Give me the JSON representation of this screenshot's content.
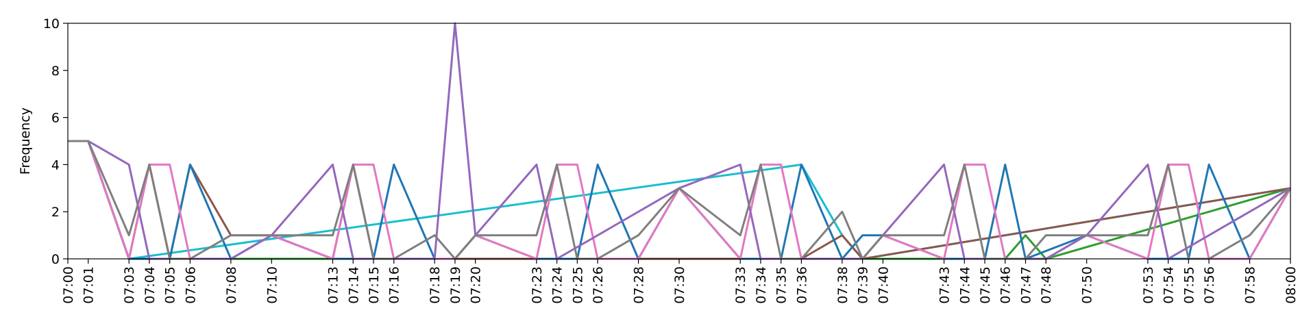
{
  "chart_data": {
    "type": "line",
    "title": "",
    "xlabel": "",
    "ylabel": "Frequency",
    "ylim": [
      0,
      10
    ],
    "y_ticks": [
      "0",
      "2",
      "4",
      "6",
      "8",
      "10"
    ],
    "xlim": [
      "07:00",
      "08:00"
    ],
    "x_ticks": [
      "07:00",
      "07:01",
      "07:03",
      "07:04",
      "07:05",
      "07:06",
      "07:08",
      "07:10",
      "07:13",
      "07:14",
      "07:15",
      "07:16",
      "07:18",
      "07:19",
      "07:20",
      "07:23",
      "07:24",
      "07:25",
      "07:26",
      "07:28",
      "07:30",
      "07:33",
      "07:34",
      "07:35",
      "07:36",
      "07:38",
      "07:39",
      "07:40",
      "07:43",
      "07:44",
      "07:45",
      "07:46",
      "07:47",
      "07:48",
      "07:50",
      "07:53",
      "07:54",
      "07:55",
      "07:56",
      "07:58",
      "08:00"
    ],
    "grid": false,
    "legend": "none",
    "series": [
      {
        "color": "#2ca02c",
        "x": [
          "07:00",
          "07:01",
          "07:03",
          "07:46",
          "07:47",
          "07:48",
          "08:00"
        ],
        "y": [
          5,
          5,
          0,
          0,
          1,
          0,
          3
        ]
      },
      {
        "color": "#17becf",
        "x": [
          "07:00",
          "07:01",
          "07:03",
          "07:36",
          "07:38",
          "07:39",
          "08:00"
        ],
        "y": [
          5,
          5,
          0,
          4,
          1,
          0,
          3
        ]
      },
      {
        "color": "#8c564b",
        "x": [
          "07:00",
          "07:01",
          "07:03",
          "07:04",
          "07:05",
          "07:06",
          "07:08",
          "07:10",
          "07:13",
          "07:14",
          "07:15",
          "07:36",
          "07:38",
          "07:39",
          "08:00"
        ],
        "y": [
          5,
          5,
          0,
          4,
          0,
          4,
          1,
          1,
          0,
          4,
          0,
          0,
          1,
          0,
          3
        ]
      },
      {
        "color": "#1f77b4",
        "x": [
          "07:00",
          "07:01",
          "07:03",
          "07:05",
          "07:06",
          "07:08",
          "07:10",
          "07:13",
          "07:15",
          "07:16",
          "07:18",
          "07:19",
          "07:20",
          "07:23",
          "07:25",
          "07:26",
          "07:28",
          "07:30",
          "07:33",
          "07:35",
          "07:36",
          "07:38",
          "07:39",
          "07:40",
          "07:43",
          "07:45",
          "07:46",
          "07:47",
          "07:50",
          "07:53",
          "07:55",
          "07:56",
          "07:58",
          "08:00"
        ],
        "y": [
          5,
          5,
          0,
          0,
          4,
          0,
          1,
          0,
          0,
          4,
          0,
          0,
          1,
          0,
          0,
          4,
          0,
          3,
          0,
          0,
          4,
          0,
          1,
          1,
          0,
          0,
          4,
          0,
          1,
          0,
          0,
          4,
          0,
          3
        ]
      },
      {
        "color": "#e377c2",
        "x": [
          "07:00",
          "07:01",
          "07:03",
          "07:04",
          "07:05",
          "07:06",
          "07:08",
          "07:10",
          "07:13",
          "07:14",
          "07:15",
          "07:16",
          "07:18",
          "07:19",
          "07:20",
          "07:23",
          "07:24",
          "07:25",
          "07:26",
          "07:28",
          "07:30",
          "07:33",
          "07:34",
          "07:35",
          "07:36",
          "07:38",
          "07:39",
          "07:40",
          "07:43",
          "07:44",
          "07:45",
          "07:46",
          "07:48",
          "07:50",
          "07:53",
          "07:54",
          "07:55",
          "07:56",
          "07:58",
          "08:00"
        ],
        "y": [
          5,
          5,
          0,
          4,
          4,
          0,
          0,
          1,
          0,
          4,
          4,
          0,
          0,
          0,
          1,
          0,
          4,
          4,
          0,
          0,
          3,
          0,
          4,
          4,
          0,
          0,
          0,
          1,
          0,
          4,
          4,
          0,
          0,
          1,
          0,
          4,
          4,
          0,
          0,
          3
        ]
      },
      {
        "color": "#9467bd",
        "x": [
          "07:00",
          "07:01",
          "07:03",
          "07:04",
          "07:08",
          "07:10",
          "07:13",
          "07:14",
          "07:18",
          "07:19",
          "07:20",
          "07:23",
          "07:24",
          "07:30",
          "07:33",
          "07:34",
          "07:38",
          "07:39",
          "07:40",
          "07:43",
          "07:44",
          "07:48",
          "07:50",
          "07:53",
          "07:54",
          "08:00"
        ],
        "y": [
          5,
          5,
          4,
          0,
          0,
          1,
          4,
          0,
          0,
          10,
          1,
          4,
          0,
          3,
          4,
          0,
          0,
          0,
          1,
          4,
          0,
          0,
          1,
          4,
          0,
          3
        ]
      },
      {
        "color": "#7f7f7f",
        "x": [
          "07:00",
          "07:01",
          "07:03",
          "07:04",
          "07:05",
          "07:06",
          "07:08",
          "07:10",
          "07:13",
          "07:14",
          "07:15",
          "07:16",
          "07:18",
          "07:19",
          "07:20",
          "07:23",
          "07:24",
          "07:25",
          "07:26",
          "07:28",
          "07:30",
          "07:33",
          "07:34",
          "07:35",
          "07:36",
          "07:38",
          "07:39",
          "07:40",
          "07:43",
          "07:44",
          "07:45",
          "07:47",
          "07:48",
          "07:50",
          "07:53",
          "07:54",
          "07:55",
          "07:56",
          "07:58",
          "08:00"
        ],
        "y": [
          5,
          5,
          1,
          4,
          0,
          0,
          1,
          1,
          1,
          4,
          0,
          0,
          1,
          0,
          1,
          1,
          4,
          0,
          0,
          1,
          3,
          1,
          4,
          0,
          0,
          2,
          0,
          1,
          1,
          4,
          0,
          0,
          1,
          1,
          1,
          4,
          0,
          0,
          1,
          3
        ]
      }
    ]
  }
}
